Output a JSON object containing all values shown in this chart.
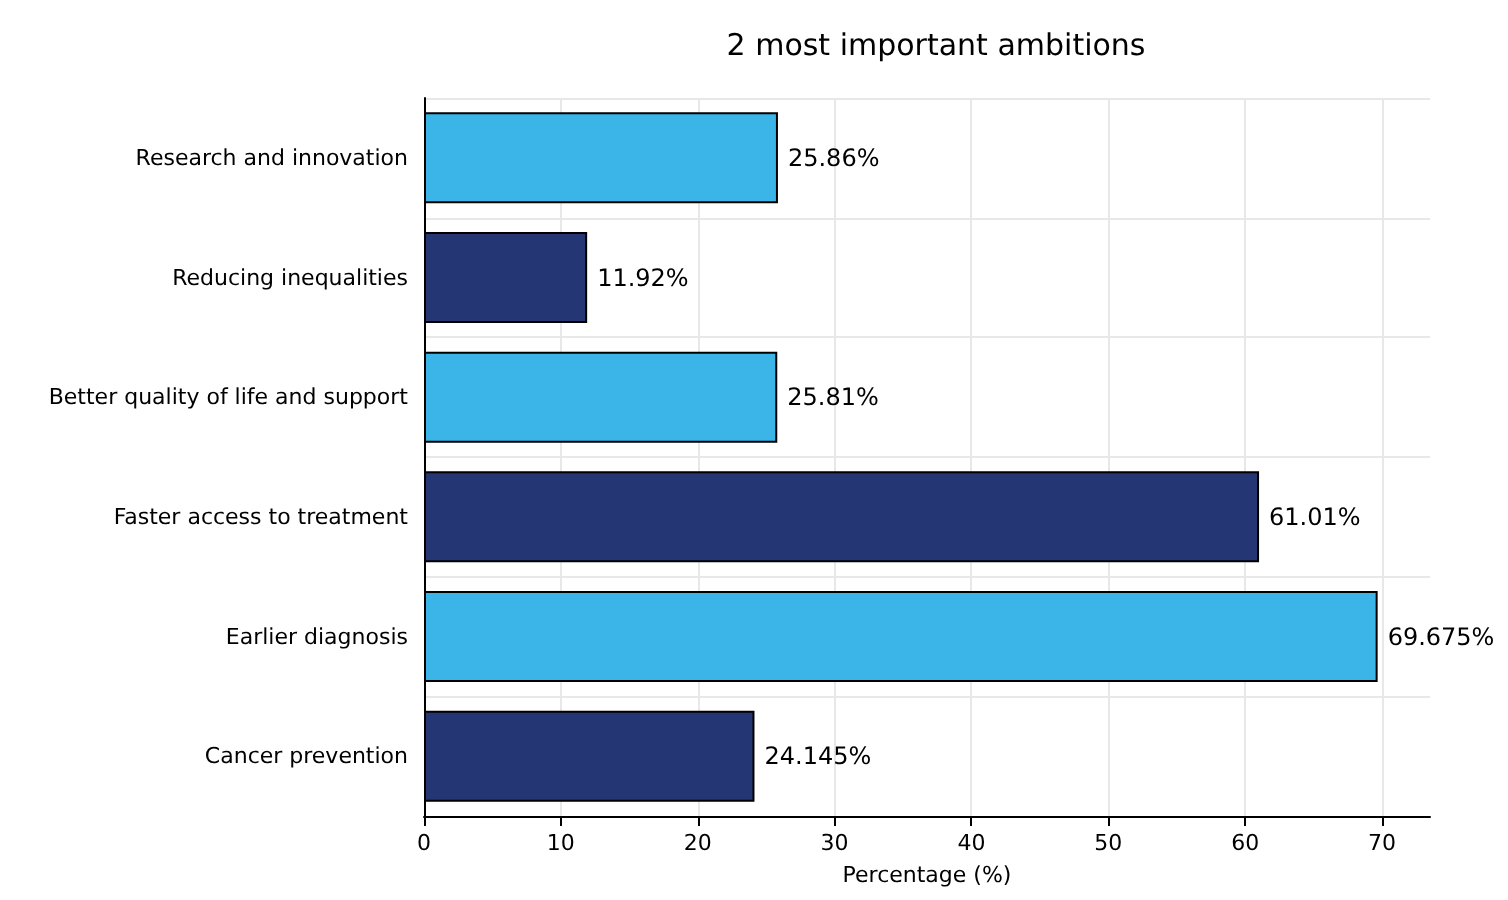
{
  "chart_data": {
    "type": "bar",
    "orientation": "horizontal",
    "title": "2 most important ambitions",
    "xlabel": "Percentage (%)",
    "categories": [
      "Research and innovation",
      "Reducing inequalities",
      "Better quality of life and support",
      "Faster access to treatment",
      "Earlier diagnosis",
      "Cancer prevention"
    ],
    "values": [
      25.86,
      11.92,
      25.81,
      61.01,
      69.675,
      24.145
    ],
    "colors": [
      "#3bb4e8",
      "#253674",
      "#3bb4e8",
      "#253674",
      "#3bb4e8",
      "#253674"
    ],
    "value_labels": [
      "25.86%",
      "11.92%",
      "25.81%",
      "61.01%",
      "69.675%",
      "24.145%"
    ],
    "xlim": [
      0,
      73.5
    ],
    "xticks": [
      0,
      10,
      20,
      30,
      40,
      50,
      60,
      70
    ],
    "grid": true
  }
}
